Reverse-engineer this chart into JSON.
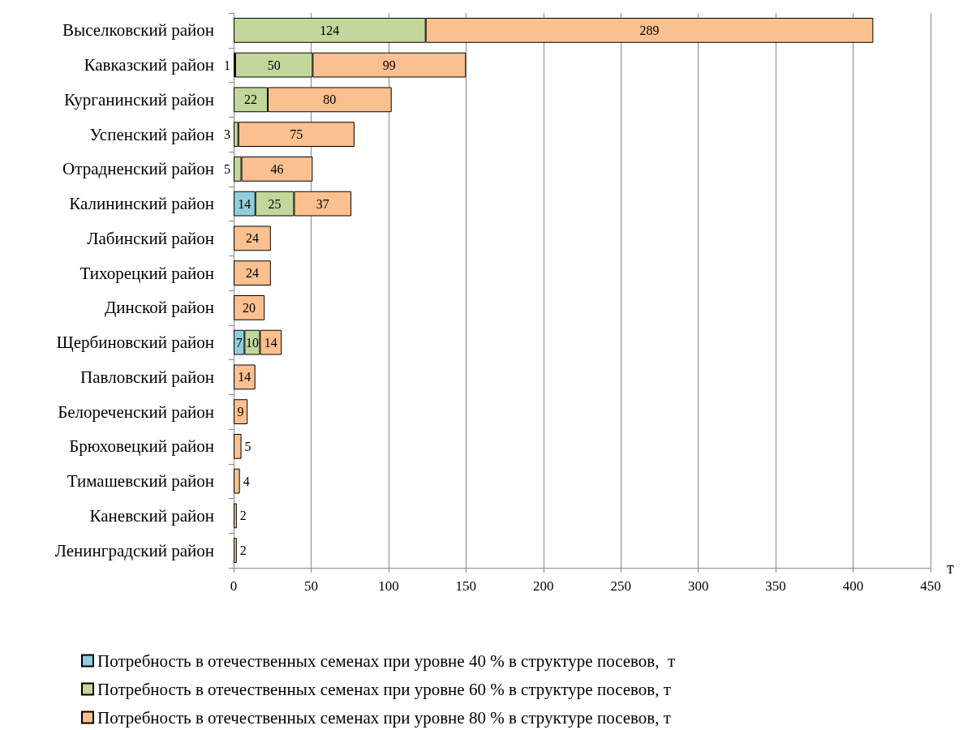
{
  "chart_data": {
    "type": "bar",
    "orientation": "horizontal",
    "stacked": true,
    "data_labels": true,
    "grid": "x",
    "legend": "bottom",
    "xlabel": "т",
    "categories": [
      "Выселковский район",
      "Кавказский район",
      "Курганинский район",
      "Успенский район",
      "Отрадненский район",
      "Калининский район",
      "Лабинский район",
      "Тихорецкий район",
      "Динской район",
      "Щербиновский район",
      "Павловский район",
      "Белореченский район",
      "Брюховецкий район",
      "Тимашевский район",
      "Каневский район",
      "Ленинградский район"
    ],
    "xlim": [
      0,
      450
    ],
    "xticks": [
      0,
      50,
      100,
      150,
      200,
      250,
      300,
      350,
      400,
      450
    ],
    "series": [
      {
        "name": "Потребность в отечественных семенах при уровне 40 % в структуре посевов,  т",
        "color": "#92cddc",
        "values": [
          null,
          1,
          null,
          null,
          null,
          14,
          null,
          null,
          null,
          7,
          null,
          null,
          null,
          null,
          null,
          null
        ]
      },
      {
        "name": "Потребность в отечественных семенах при уровне 60 % в структуре посевов, т",
        "color": "#c3d69b",
        "values": [
          124,
          50,
          22,
          3,
          5,
          25,
          null,
          null,
          null,
          10,
          null,
          null,
          null,
          null,
          null,
          null
        ]
      },
      {
        "name": "Потребность в отечественных семенах при уровне 80 % в структуре посевов, т",
        "color": "#fac090",
        "values": [
          289,
          99,
          80,
          75,
          46,
          37,
          24,
          24,
          20,
          14,
          14,
          9,
          5,
          4,
          2,
          2
        ]
      }
    ]
  }
}
